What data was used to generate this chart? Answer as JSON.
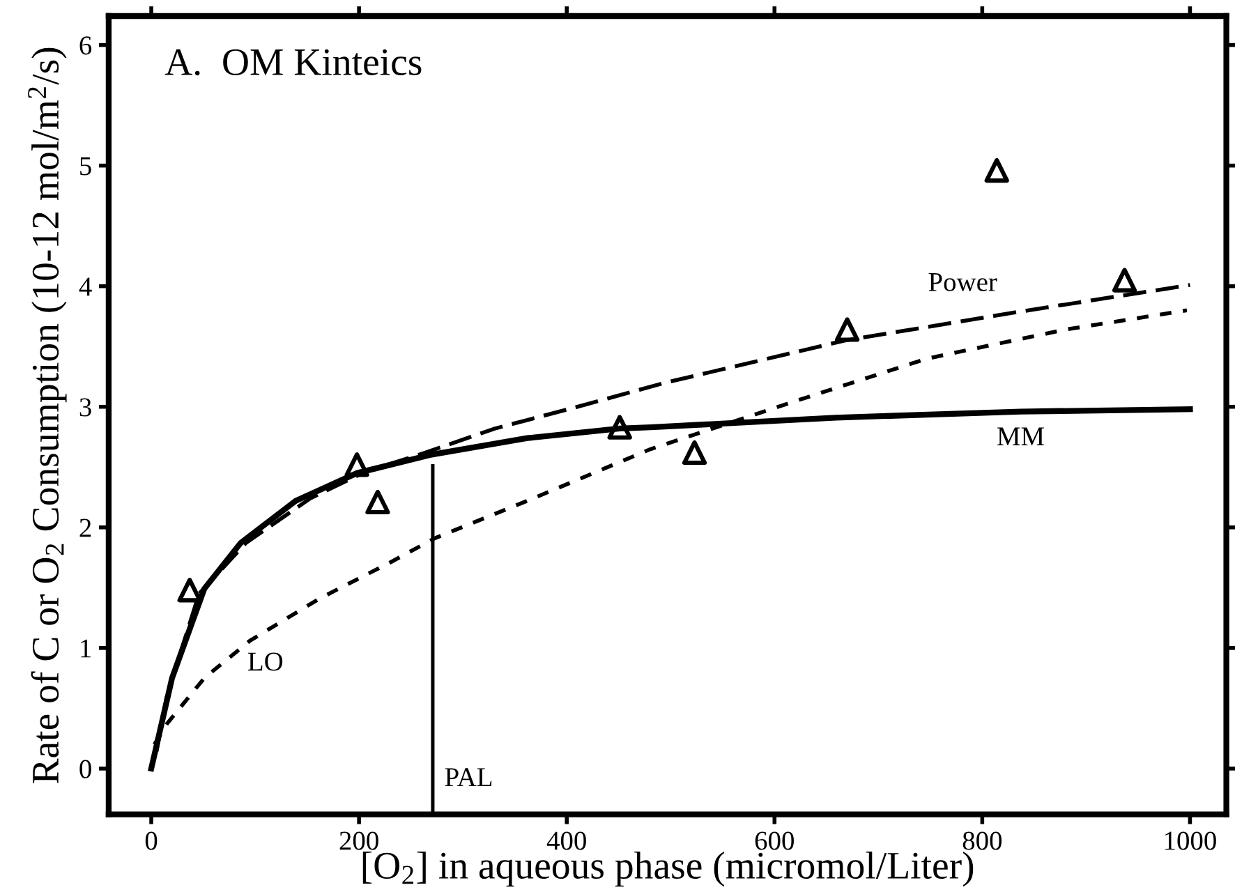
{
  "chart_data": {
    "type": "line",
    "title": "A.  OM Kinteics",
    "xlabel": "[O$_{2}$] in aqueous phase (micromol/Liter)",
    "ylabel": "Rate of C or O$_{2}$ Consumption (10-12 mol/m$^{2}$/s)",
    "xlim": [
      -41,
      1035
    ],
    "ylim": [
      -0.38,
      6.24
    ],
    "xticks": [
      0,
      200,
      400,
      600,
      800,
      1000
    ],
    "yticks": [
      0,
      1,
      2,
      3,
      4,
      5,
      6
    ],
    "grid": false,
    "legend": false,
    "series": [
      {
        "type": "scatter",
        "marker": "triangle",
        "color": "#000000",
        "x": [
          37,
          198,
          218,
          451,
          523,
          670,
          814,
          937
        ],
        "values": [
          1.48,
          2.52,
          2.21,
          2.83,
          2.62,
          3.64,
          4.96,
          4.05
        ]
      },
      {
        "name": "MM",
        "line_style": "solid",
        "color": "#000000",
        "x": [
          0,
          20,
          51,
          86,
          139,
          198,
          268,
          362,
          451,
          481,
          659,
          837,
          1000
        ],
        "values": [
          0,
          0.75,
          1.49,
          1.87,
          2.22,
          2.45,
          2.6,
          2.74,
          2.82,
          2.83,
          2.91,
          2.96,
          2.98
        ]
      },
      {
        "name": "Power",
        "line_style": "dashed",
        "color": "#000000",
        "x": [
          5,
          15,
          46,
          91,
          153,
          206,
          264,
          331,
          406,
          495,
          668,
          837,
          1000
        ],
        "values": [
          0.14,
          0.6,
          1.45,
          1.87,
          2.24,
          2.46,
          2.62,
          2.82,
          2.99,
          3.2,
          3.55,
          3.79,
          4.01
        ]
      },
      {
        "name": "LO",
        "line_style": "dotted",
        "color": "#000000",
        "x": [
          3,
          15,
          51,
          95,
          162,
          228,
          273,
          362,
          481,
          614,
          747,
          880,
          997
        ],
        "values": [
          0.2,
          0.37,
          0.75,
          1.06,
          1.41,
          1.7,
          1.91,
          2.22,
          2.65,
          3.03,
          3.4,
          3.64,
          3.8
        ]
      },
      {
        "name": "PAL",
        "line_style": "solid",
        "color": "#000000",
        "x": [
          271,
          271
        ],
        "values": [
          -0.38,
          2.51
        ]
      }
    ]
  }
}
